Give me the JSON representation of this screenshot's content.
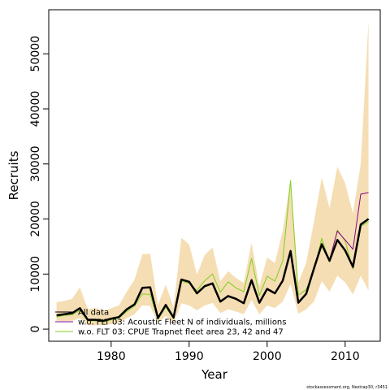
{
  "chart_data": {
    "type": "line",
    "xlabel": "Year",
    "ylabel": "Recruits",
    "xlim": [
      1972,
      2014.5
    ],
    "ylim": [
      -2200,
      58000
    ],
    "x_ticks": [
      1980,
      1990,
      2000,
      2010
    ],
    "y_ticks": [
      0,
      10000,
      20000,
      30000,
      40000,
      50000
    ],
    "legend_position": "bottom-left",
    "credit": "stockassessment.org, Nestrap30, r3451",
    "x": [
      1973,
      1974,
      1975,
      1976,
      1977,
      1978,
      1979,
      1980,
      1981,
      1982,
      1983,
      1984,
      1985,
      1986,
      1987,
      1988,
      1989,
      1990,
      1991,
      1992,
      1993,
      1994,
      1995,
      1996,
      1997,
      1998,
      1999,
      2000,
      2001,
      2002,
      2003,
      2004,
      2005,
      2006,
      2007,
      2008,
      2009,
      2010,
      2011,
      2012,
      2013
    ],
    "band": {
      "color": "#f5deb3",
      "lower": [
        1500,
        1500,
        1500,
        2000,
        700,
        700,
        700,
        900,
        1100,
        2000,
        2700,
        4300,
        4200,
        1100,
        2400,
        1000,
        4700,
        4300,
        3400,
        4300,
        4800,
        2900,
        3600,
        3200,
        2700,
        5300,
        2700,
        4300,
        3800,
        5000,
        8200,
        2800,
        3600,
        5000,
        8700,
        6800,
        9700,
        8500,
        6300,
        9700,
        7000
      ],
      "upper": [
        4900,
        5100,
        5500,
        7600,
        3600,
        3900,
        3300,
        3800,
        4300,
        6800,
        9000,
        13600,
        13700,
        4400,
        8100,
        4000,
        16600,
        15400,
        9900,
        13500,
        14800,
        8700,
        10500,
        9300,
        8400,
        15700,
        7800,
        13000,
        12000,
        17900,
        27000,
        8500,
        12000,
        19500,
        27500,
        22000,
        29500,
        26500,
        21000,
        30000,
        56000
      ]
    },
    "series": [
      {
        "name": "All data",
        "color": "#000000",
        "width": 2.5,
        "values": [
          2500,
          2700,
          2900,
          3800,
          1700,
          1700,
          1500,
          1900,
          2200,
          3600,
          4500,
          7500,
          7600,
          2000,
          4400,
          2100,
          9000,
          8600,
          6500,
          7800,
          8300,
          5000,
          6000,
          5500,
          4700,
          8900,
          4800,
          7300,
          6500,
          8800,
          14200,
          4800,
          6400,
          11000,
          15400,
          12400,
          16200,
          14300,
          11300,
          19000,
          20000
        ]
      },
      {
        "name": "w.o. FLT 03: Acoustic Fleet   N of individuals, millions",
        "color": "#8b008b",
        "width": 1,
        "values": [
          2600,
          2800,
          3000,
          3700,
          1700,
          1700,
          1500,
          1900,
          2200,
          3600,
          4500,
          7400,
          7600,
          2000,
          4300,
          2100,
          9100,
          8700,
          6600,
          7900,
          8400,
          5100,
          6100,
          5600,
          4800,
          9000,
          4900,
          7400,
          6600,
          8900,
          14300,
          4900,
          6500,
          11100,
          15600,
          12600,
          17800,
          16200,
          14500,
          24500,
          24800
        ]
      },
      {
        "name": "w.o. FLT 03: CPUE Trapnet fleet area 23, 42 and 47",
        "color": "#7fcf1e",
        "width": 1,
        "values": [
          2200,
          2500,
          2600,
          3400,
          1500,
          1500,
          1300,
          1700,
          2000,
          3200,
          4200,
          6400,
          6300,
          1800,
          4000,
          1900,
          8700,
          8300,
          7000,
          8800,
          10000,
          6700,
          8600,
          7500,
          6800,
          12800,
          6100,
          9600,
          8700,
          12400,
          27000,
          6200,
          7200,
          10600,
          16500,
          12200,
          18000,
          16000,
          10900,
          18700,
          19500
        ]
      }
    ]
  }
}
